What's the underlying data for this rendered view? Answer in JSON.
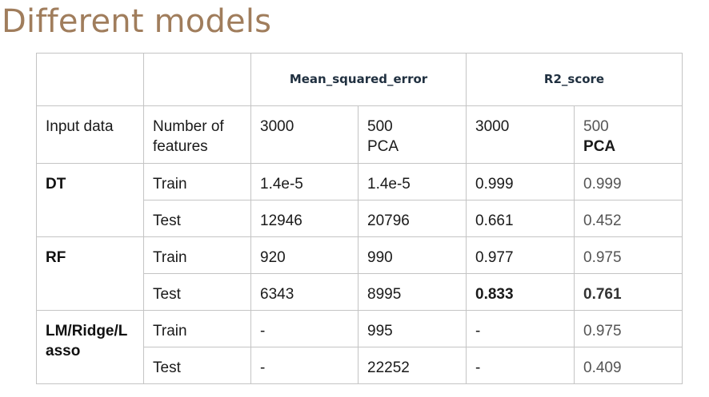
{
  "title": "Different models",
  "table": {
    "group_headers": {
      "mse": "Mean_squared_error",
      "r2": "R2_score"
    },
    "subheader": {
      "input_data": "Input data",
      "features_line1": "Number of",
      "features_line2": "features",
      "mse_3000": "3000",
      "mse_500_line1": "500",
      "mse_500_line2": "PCA",
      "r2_3000": "3000",
      "r2_500_line1": "500",
      "r2_500_line2": "PCA"
    },
    "models": [
      {
        "name": "DT",
        "rows": [
          {
            "split": "Train",
            "mse_3000": "1.4e-5",
            "mse_500": "1.4e-5",
            "r2_3000": "0.999",
            "r2_500": "0.999"
          },
          {
            "split": "Test",
            "mse_3000": "12946",
            "mse_500": "20796",
            "r2_3000": "0.661",
            "r2_500": "0.452"
          }
        ]
      },
      {
        "name": "RF",
        "rows": [
          {
            "split": "Train",
            "mse_3000": "920",
            "mse_500": "990",
            "r2_3000": "0.977",
            "r2_500": "0.975"
          },
          {
            "split": "Test",
            "mse_3000": "6343",
            "mse_500": "8995",
            "r2_3000": "0.833",
            "r2_500": "0.761"
          }
        ]
      },
      {
        "name_line1": "LM/Ridge/L",
        "name_line2": "asso",
        "rows": [
          {
            "split": "Train",
            "mse_3000": "-",
            "mse_500": "995",
            "r2_3000": "-",
            "r2_500": "0.975"
          },
          {
            "split": "Test",
            "mse_3000": "-",
            "mse_500": "22252",
            "r2_3000": "-",
            "r2_500": "0.409"
          }
        ]
      }
    ]
  }
}
